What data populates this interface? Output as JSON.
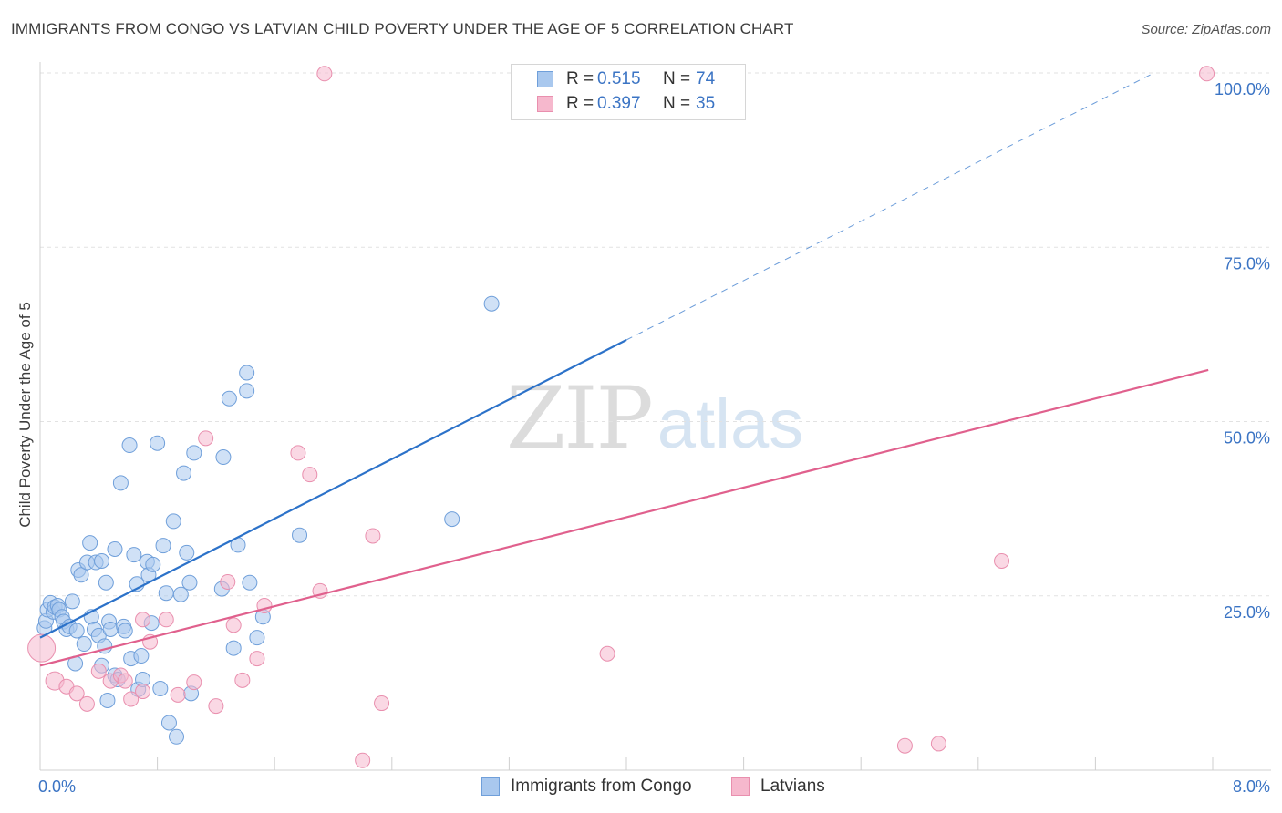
{
  "header": {
    "title": "IMMIGRANTS FROM CONGO VS LATVIAN CHILD POVERTY UNDER THE AGE OF 5 CORRELATION CHART",
    "source": "Source: ZipAtlas.com"
  },
  "watermark": {
    "zip": "ZIP",
    "atlas": "atlas"
  },
  "legend": {
    "r_label": "R =",
    "n_label": "N =",
    "series": [
      {
        "r": "0.515",
        "n": "74"
      },
      {
        "r": "0.397",
        "n": "35"
      }
    ]
  },
  "colors": {
    "blue_fill": "#a9c8ee",
    "blue_stroke": "#6f9fda",
    "blue_line": "#2c72c9",
    "pink_fill": "#f6b8cd",
    "pink_stroke": "#e98fae",
    "pink_line": "#e0608d",
    "axis_text": "#3b74c4",
    "grid": "#e2e2e2"
  },
  "chart_data": {
    "type": "scatter",
    "title": "IMMIGRANTS FROM CONGO VS LATVIAN CHILD POVERTY UNDER THE AGE OF 5 CORRELATION CHART",
    "xlabel": "",
    "ylabel": "Child Poverty Under the Age of 5",
    "xlim": [
      0,
      8
    ],
    "ylim": [
      0,
      100
    ],
    "x_tick_labels": [
      "0.0%",
      "8.0%"
    ],
    "y_ticks": [
      25,
      50,
      75,
      100
    ],
    "y_tick_labels": [
      "25.0%",
      "50.0%",
      "75.0%",
      "100.0%"
    ],
    "grid": true,
    "series": [
      {
        "name": "Immigrants from Congo",
        "r": 0.515,
        "n": 74,
        "trend": {
          "x0": 0.0,
          "y0": 19.0,
          "x1": 4.0,
          "y1": 61.7,
          "dashed_to_x": 7.6,
          "dashed_to_y": 100.0
        },
        "points": [
          [
            0.03,
            20.4
          ],
          [
            0.04,
            21.4
          ],
          [
            0.05,
            23.0
          ],
          [
            0.07,
            24.0
          ],
          [
            0.09,
            22.7
          ],
          [
            0.1,
            23.4
          ],
          [
            0.12,
            23.6
          ],
          [
            0.13,
            23.0
          ],
          [
            0.15,
            22.0
          ],
          [
            0.16,
            21.3
          ],
          [
            0.18,
            20.2
          ],
          [
            0.2,
            20.6
          ],
          [
            0.22,
            24.2
          ],
          [
            0.24,
            15.3
          ],
          [
            0.25,
            20.0
          ],
          [
            0.26,
            28.7
          ],
          [
            0.28,
            28.0
          ],
          [
            0.3,
            18.1
          ],
          [
            0.32,
            29.8
          ],
          [
            0.34,
            32.6
          ],
          [
            0.35,
            22.0
          ],
          [
            0.37,
            20.2
          ],
          [
            0.38,
            29.8
          ],
          [
            0.4,
            19.3
          ],
          [
            0.42,
            30.0
          ],
          [
            0.42,
            15.0
          ],
          [
            0.44,
            17.8
          ],
          [
            0.45,
            26.9
          ],
          [
            0.46,
            10.0
          ],
          [
            0.47,
            21.3
          ],
          [
            0.48,
            20.2
          ],
          [
            0.51,
            31.7
          ],
          [
            0.51,
            13.6
          ],
          [
            0.53,
            13.0
          ],
          [
            0.55,
            41.2
          ],
          [
            0.57,
            20.6
          ],
          [
            0.58,
            20.0
          ],
          [
            0.61,
            46.6
          ],
          [
            0.62,
            16.0
          ],
          [
            0.64,
            30.9
          ],
          [
            0.66,
            26.7
          ],
          [
            0.67,
            11.6
          ],
          [
            0.69,
            16.4
          ],
          [
            0.7,
            13.0
          ],
          [
            0.73,
            29.9
          ],
          [
            0.74,
            28.0
          ],
          [
            0.76,
            21.1
          ],
          [
            0.77,
            29.5
          ],
          [
            0.8,
            46.9
          ],
          [
            0.82,
            11.7
          ],
          [
            0.84,
            32.2
          ],
          [
            0.86,
            25.4
          ],
          [
            0.88,
            6.8
          ],
          [
            0.91,
            35.7
          ],
          [
            0.93,
            4.8
          ],
          [
            0.96,
            25.2
          ],
          [
            0.98,
            42.6
          ],
          [
            1.0,
            31.2
          ],
          [
            1.02,
            26.9
          ],
          [
            1.05,
            45.5
          ],
          [
            1.03,
            11.0
          ],
          [
            1.25,
            44.9
          ],
          [
            1.24,
            26.0
          ],
          [
            1.29,
            53.3
          ],
          [
            1.32,
            17.5
          ],
          [
            1.35,
            32.3
          ],
          [
            1.41,
            54.4
          ],
          [
            1.43,
            26.9
          ],
          [
            1.52,
            22.0
          ],
          [
            1.41,
            57.0
          ],
          [
            1.48,
            19.0
          ],
          [
            1.77,
            33.7
          ],
          [
            2.81,
            36.0
          ],
          [
            3.08,
            66.9
          ]
        ]
      },
      {
        "name": "Latvians",
        "r": 0.397,
        "n": 35,
        "trend": {
          "x0": 0.0,
          "y0": 15.0,
          "x1": 7.97,
          "y1": 57.4
        },
        "points": [
          [
            0.01,
            17.5
          ],
          [
            0.1,
            12.8
          ],
          [
            0.18,
            12.0
          ],
          [
            0.25,
            11.0
          ],
          [
            0.32,
            9.5
          ],
          [
            0.4,
            14.2
          ],
          [
            0.48,
            12.8
          ],
          [
            0.55,
            13.6
          ],
          [
            0.58,
            12.8
          ],
          [
            0.62,
            10.2
          ],
          [
            0.7,
            11.3
          ],
          [
            0.7,
            21.6
          ],
          [
            0.75,
            18.4
          ],
          [
            0.86,
            21.6
          ],
          [
            0.94,
            10.8
          ],
          [
            1.05,
            12.6
          ],
          [
            1.13,
            47.6
          ],
          [
            1.2,
            9.2
          ],
          [
            1.28,
            27.0
          ],
          [
            1.32,
            20.8
          ],
          [
            1.38,
            12.9
          ],
          [
            1.48,
            16.0
          ],
          [
            1.53,
            23.6
          ],
          [
            1.76,
            45.5
          ],
          [
            1.84,
            42.4
          ],
          [
            1.91,
            25.7
          ],
          [
            1.94,
            99.9
          ],
          [
            2.2,
            1.4
          ],
          [
            2.27,
            33.6
          ],
          [
            2.33,
            9.6
          ],
          [
            3.87,
            16.7
          ],
          [
            5.9,
            3.5
          ],
          [
            6.13,
            3.8
          ],
          [
            6.56,
            30.0
          ],
          [
            7.96,
            99.9
          ]
        ]
      }
    ]
  },
  "bottom_legend": [
    {
      "label": "Immigrants from Congo"
    },
    {
      "label": "Latvians"
    }
  ]
}
